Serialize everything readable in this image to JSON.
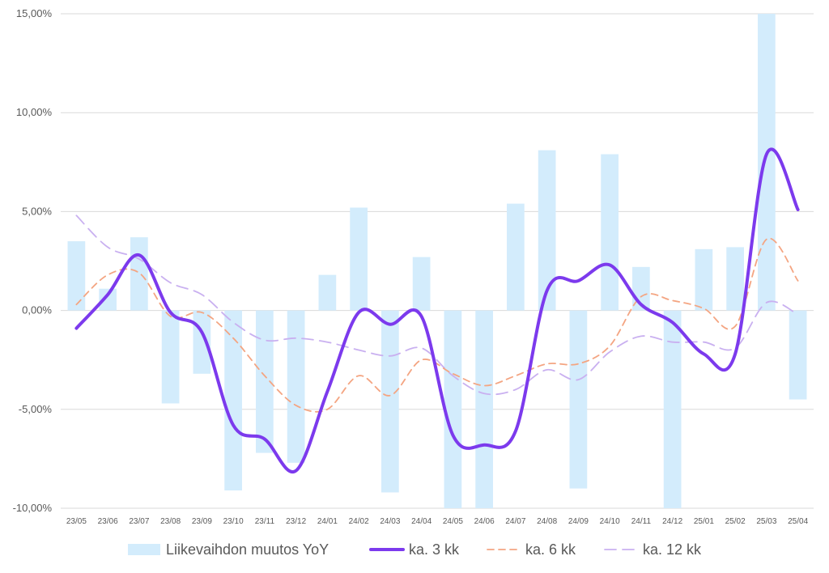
{
  "chart_data": {
    "type": "bar",
    "categories": [
      "23/05",
      "23/06",
      "23/07",
      "23/08",
      "23/09",
      "23/10",
      "23/11",
      "23/12",
      "24/01",
      "24/02",
      "24/03",
      "24/04",
      "24/05",
      "24/06",
      "24/07",
      "24/08",
      "24/09",
      "24/10",
      "24/11",
      "24/12",
      "25/01",
      "25/02",
      "25/03",
      "25/04"
    ],
    "ylim": [
      -10,
      15
    ],
    "yticks": [
      {
        "value": 15,
        "label": "15,00%"
      },
      {
        "value": 10,
        "label": "10,00%"
      },
      {
        "value": 5,
        "label": "5,00%"
      },
      {
        "value": 0,
        "label": "0,00%"
      },
      {
        "value": -5,
        "label": "-5,00%"
      },
      {
        "value": -10,
        "label": "-10,00%"
      }
    ],
    "grid": true,
    "legend_position": "bottom",
    "series": [
      {
        "name": "Liikevaihdon muutos YoY",
        "kind": "bar",
        "color": "#d3ecfc",
        "values": [
          3.5,
          1.1,
          3.7,
          -4.7,
          -3.2,
          -9.1,
          -7.2,
          -7.7,
          1.8,
          5.2,
          -9.2,
          2.7,
          -10.0,
          -10.0,
          5.4,
          8.1,
          -9.0,
          7.9,
          2.2,
          -10.0,
          3.1,
          3.2,
          15.0,
          -4.5
        ]
      },
      {
        "name": "ka. 3 kk",
        "kind": "line",
        "style": "solid",
        "color": "#7c3aed",
        "values": [
          -0.9,
          0.8,
          2.8,
          -0.1,
          -1.1,
          -5.8,
          -6.5,
          -8.1,
          -4.1,
          -0.1,
          -0.7,
          -0.3,
          -6.3,
          -6.8,
          -6.1,
          1.0,
          1.5,
          2.3,
          0.3,
          -0.6,
          -2.2,
          -2.2,
          7.9,
          5.1
        ]
      },
      {
        "name": "ka. 6 kk",
        "kind": "line",
        "style": "dashed",
        "color": "#f4a582",
        "values": [
          0.3,
          1.8,
          1.9,
          -0.3,
          -0.1,
          -1.4,
          -3.3,
          -4.8,
          -5.0,
          -3.3,
          -4.3,
          -2.5,
          -3.2,
          -3.8,
          -3.3,
          -2.7,
          -2.7,
          -1.8,
          0.7,
          0.5,
          0.1,
          -0.8,
          3.6,
          1.5
        ]
      },
      {
        "name": "ka. 12 kk",
        "kind": "line",
        "style": "longdash",
        "color": "#c9b0f0",
        "values": [
          4.8,
          3.2,
          2.6,
          1.4,
          0.8,
          -0.6,
          -1.5,
          -1.4,
          -1.6,
          -2.0,
          -2.3,
          -1.9,
          -3.3,
          -4.2,
          -4.0,
          -3.0,
          -3.5,
          -2.1,
          -1.3,
          -1.6,
          -1.6,
          -1.9,
          0.4,
          -0.2
        ]
      }
    ]
  }
}
